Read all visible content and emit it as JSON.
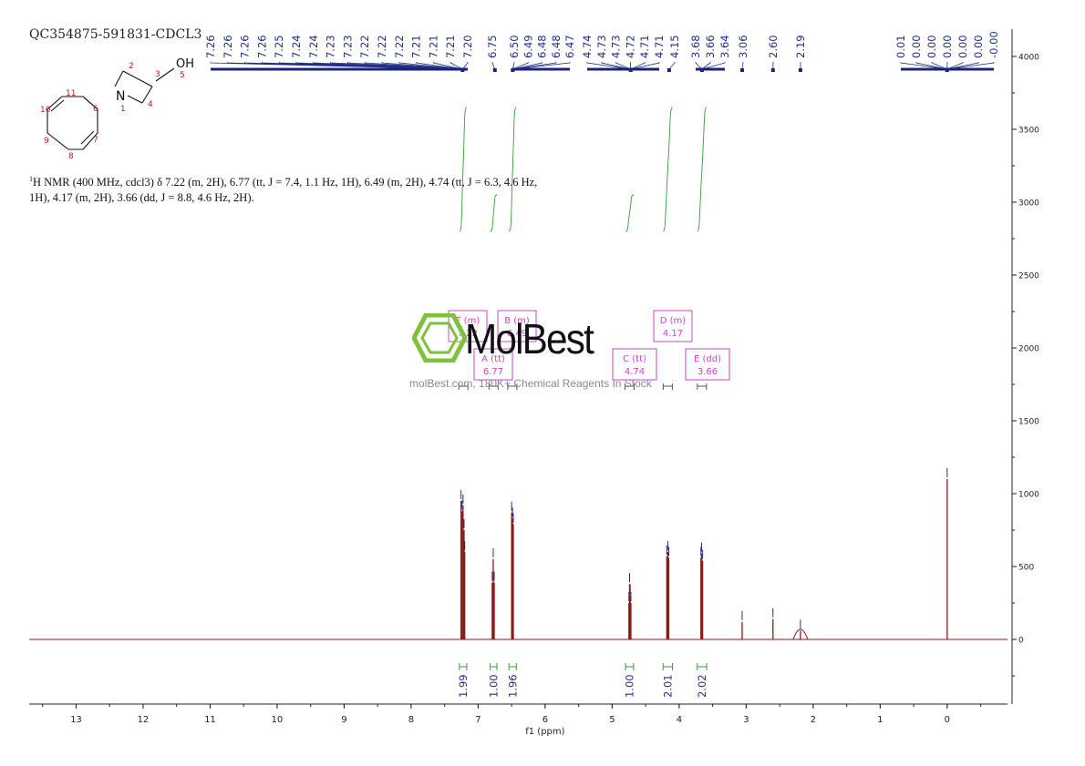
{
  "sample_id": "QC354875-591831-CDCL3",
  "description": {
    "nucleus": "1",
    "text": "H NMR (400 MHz, cdcl3) δ 7.22 (m, 2H), 6.77 (tt, J = 7.4, 1.1 Hz, 1H), 6.49 (m, 2H), 4.74 (tt, J = 6.3, 4.6 Hz, 1H), 4.17 (m, 2H), 3.66 (dd, J = 8.8, 4.6 Hz, 2H)."
  },
  "structure": {
    "oh_label": "OH",
    "n_label": "N",
    "atom_numbers": [
      "1",
      "2",
      "3",
      "4",
      "5",
      "6",
      "7",
      "8",
      "9",
      "10",
      "11"
    ]
  },
  "watermark": {
    "brand": "MolBest",
    "text": "molBest.com, 180K+ Chemical Reagents In Stock"
  },
  "colors": {
    "spectrum": "#8b1a1a",
    "peak_labels": "#1f2f8a",
    "integrals": "#3a9a3a",
    "multiplet_boxes": "#cc44cc",
    "ref_bar": "#1a237e"
  },
  "chart_data": {
    "type": "line",
    "xlabel": "f1 (ppm)",
    "xlim": [
      13.7,
      -0.9
    ],
    "x_ticks": [
      "13",
      "12",
      "11",
      "10",
      "9",
      "8",
      "7",
      "6",
      "5",
      "4",
      "3",
      "2",
      "1",
      "0"
    ],
    "ylim": [
      -500,
      4200
    ],
    "y_ticks": [
      "0",
      "500",
      "1000",
      "1500",
      "2000",
      "2500",
      "3000",
      "3500",
      "4000"
    ],
    "peak_labels": [
      "7.26",
      "7.26",
      "7.26",
      "7.26",
      "7.25",
      "7.24",
      "7.24",
      "7.23",
      "7.23",
      "7.22",
      "7.22",
      "7.22",
      "7.21",
      "7.21",
      "7.21",
      "7.20",
      "6.75",
      "6.50",
      "6.49",
      "6.48",
      "6.48",
      "6.47",
      "4.74",
      "4.73",
      "4.73",
      "4.72",
      "4.71",
      "4.71",
      "4.15",
      "3.68",
      "3.66",
      "3.64",
      "3.06",
      "2.60",
      "2.19",
      "0.01",
      "0.00",
      "0.00",
      "0.00",
      "0.00",
      "0.00",
      "-0.00"
    ],
    "peaks": [
      {
        "ppm": 7.255,
        "height": 950
      },
      {
        "ppm": 7.24,
        "height": 880
      },
      {
        "ppm": 7.225,
        "height": 920
      },
      {
        "ppm": 7.21,
        "height": 750
      },
      {
        "ppm": 7.2,
        "height": 600
      },
      {
        "ppm": 6.79,
        "height": 390
      },
      {
        "ppm": 6.775,
        "height": 550
      },
      {
        "ppm": 6.76,
        "height": 390
      },
      {
        "ppm": 6.5,
        "height": 870
      },
      {
        "ppm": 6.487,
        "height": 830
      },
      {
        "ppm": 6.475,
        "height": 790
      },
      {
        "ppm": 4.75,
        "height": 250
      },
      {
        "ppm": 4.74,
        "height": 380
      },
      {
        "ppm": 4.73,
        "height": 300
      },
      {
        "ppm": 4.72,
        "height": 250
      },
      {
        "ppm": 4.185,
        "height": 570
      },
      {
        "ppm": 4.17,
        "height": 600
      },
      {
        "ppm": 4.155,
        "height": 560
      },
      {
        "ppm": 3.675,
        "height": 560
      },
      {
        "ppm": 3.665,
        "height": 590
      },
      {
        "ppm": 3.65,
        "height": 540
      },
      {
        "ppm": 3.06,
        "height": 120
      },
      {
        "ppm": 2.6,
        "height": 140
      },
      {
        "ppm": 2.19,
        "height": 60
      },
      {
        "ppm": 0.0,
        "height": 1100
      }
    ],
    "integrals": [
      {
        "from": 7.28,
        "to": 7.17,
        "value": "1.99"
      },
      {
        "from": 6.82,
        "to": 6.72,
        "value": "1.00"
      },
      {
        "from": 6.54,
        "to": 6.43,
        "value": "1.96"
      },
      {
        "from": 4.8,
        "to": 4.68,
        "value": "1.00"
      },
      {
        "from": 4.24,
        "to": 4.1,
        "value": "2.01"
      },
      {
        "from": 3.73,
        "to": 3.59,
        "value": "2.02"
      }
    ],
    "multiplets": [
      {
        "label": "F (m)",
        "value": "7.22",
        "ppm": 7.22
      },
      {
        "label": "B (m)",
        "value": "6.49",
        "ppm": 6.49
      },
      {
        "label": "A (tt)",
        "value": "6.77",
        "ppm": 6.77
      },
      {
        "label": "C (tt)",
        "value": "4.74",
        "ppm": 4.74
      },
      {
        "label": "D (m)",
        "value": "4.17",
        "ppm": 4.17
      },
      {
        "label": "E (dd)",
        "value": "3.66",
        "ppm": 3.66
      }
    ]
  }
}
